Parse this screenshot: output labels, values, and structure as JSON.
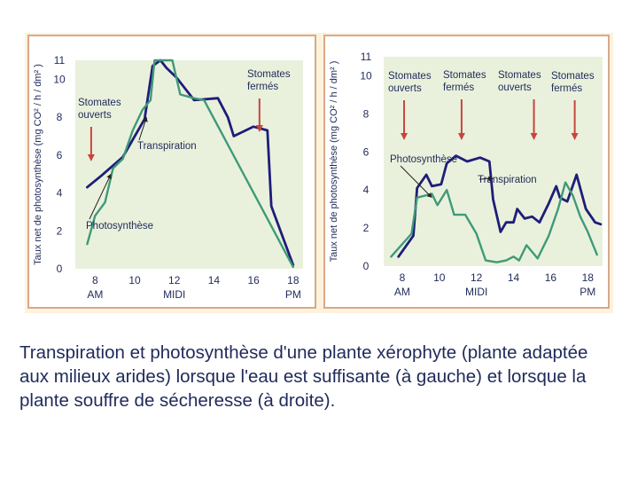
{
  "caption": "Transpiration et photosynthèse d'une plante xérophyte (plante adaptée aux milieux arides) lorsque l'eau est suffisante (à gauche) et lorsque la plante souffre de sécheresse (à droite).",
  "colors": {
    "transpiration": "#1f1d7a",
    "photosynthese": "#3f9a78",
    "plot_background": "#e9f1dc",
    "arrow": "#c8453e",
    "frame": "#d9a88a",
    "figure_background": "#fdf3dd",
    "text": "#1f2a5a"
  },
  "chart_data": [
    {
      "type": "line",
      "panel": "left",
      "ylabel": "Taux net de photosynthèse (mg CO² / h / dm² )",
      "xlim": [
        7,
        18.5
      ],
      "ylim": [
        0,
        11
      ],
      "yticks": [
        "0",
        "2",
        "4",
        "6",
        "8",
        "10",
        "11"
      ],
      "xticks": [
        {
          "value": 8,
          "label": "8",
          "sub": "AM"
        },
        {
          "value": 10,
          "label": "10",
          "sub": ""
        },
        {
          "value": 12,
          "label": "12",
          "sub": "MIDI"
        },
        {
          "value": 14,
          "label": "14",
          "sub": ""
        },
        {
          "value": 16,
          "label": "16",
          "sub": ""
        },
        {
          "value": 18,
          "label": "18",
          "sub": "PM"
        }
      ],
      "grid": false,
      "series": [
        {
          "name": "Transpiration",
          "color": "#1f1d7a",
          "points": [
            [
              7.6,
              4.3
            ],
            [
              8.3,
              4.9
            ],
            [
              9.4,
              5.9
            ],
            [
              10.5,
              7.9
            ],
            [
              10.9,
              10.7
            ],
            [
              11.3,
              11.0
            ],
            [
              11.6,
              10.6
            ],
            [
              12.1,
              10.1
            ],
            [
              13.0,
              8.9
            ],
            [
              14.2,
              9.0
            ],
            [
              14.7,
              8.0
            ],
            [
              15.0,
              7.0
            ],
            [
              16.0,
              7.5
            ],
            [
              16.7,
              7.3
            ],
            [
              16.9,
              3.3
            ],
            [
              18.0,
              0.2
            ]
          ]
        },
        {
          "name": "Photosynthèse",
          "color": "#3f9a78",
          "points": [
            [
              7.6,
              1.3
            ],
            [
              8.0,
              2.8
            ],
            [
              8.5,
              3.5
            ],
            [
              8.9,
              5.3
            ],
            [
              9.4,
              5.8
            ],
            [
              9.9,
              7.3
            ],
            [
              10.4,
              8.4
            ],
            [
              10.8,
              8.9
            ],
            [
              11.0,
              11.0
            ],
            [
              11.9,
              11.0
            ],
            [
              12.3,
              9.2
            ],
            [
              13.0,
              9.0
            ],
            [
              13.5,
              8.9
            ],
            [
              18.0,
              0.1
            ]
          ]
        }
      ],
      "annotations": [
        {
          "id": "stomates-ouverts",
          "lines": [
            "Stomates",
            "ouverts"
          ],
          "arrow_x": 7.8
        },
        {
          "id": "stomates-fermes",
          "lines": [
            "Stomates",
            "fermés"
          ],
          "arrow_x": 16.3
        },
        {
          "id": "transpiration-label",
          "lines": [
            "Transpiration"
          ],
          "target": [
            10.6,
            8.0
          ]
        },
        {
          "id": "photosynthese-label",
          "lines": [
            "Photosynthèse"
          ],
          "target": [
            8.8,
            5.0
          ]
        }
      ]
    },
    {
      "type": "line",
      "panel": "right",
      "ylabel": "Taux net de photosynthèse (mg CO² / h / dm² )",
      "xlim": [
        7,
        18.8
      ],
      "ylim": [
        0,
        11
      ],
      "yticks": [
        "0",
        "2",
        "4",
        "6",
        "8",
        "10",
        "11"
      ],
      "xticks": [
        {
          "value": 8,
          "label": "8",
          "sub": "AM"
        },
        {
          "value": 10,
          "label": "10",
          "sub": ""
        },
        {
          "value": 12,
          "label": "12",
          "sub": "MIDI"
        },
        {
          "value": 14,
          "label": "14",
          "sub": ""
        },
        {
          "value": 16,
          "label": "16",
          "sub": ""
        },
        {
          "value": 18,
          "label": "18",
          "sub": "PM"
        }
      ],
      "grid": false,
      "series": [
        {
          "name": "Transpiration",
          "color": "#1f1d7a",
          "points": [
            [
              7.8,
              0.5
            ],
            [
              8.6,
              1.6
            ],
            [
              8.8,
              4.1
            ],
            [
              9.3,
              4.8
            ],
            [
              9.6,
              4.2
            ],
            [
              10.1,
              4.3
            ],
            [
              10.4,
              5.4
            ],
            [
              10.9,
              5.8
            ],
            [
              11.5,
              5.5
            ],
            [
              12.2,
              5.7
            ],
            [
              12.7,
              5.5
            ],
            [
              12.9,
              3.5
            ],
            [
              13.3,
              1.8
            ],
            [
              13.6,
              2.3
            ],
            [
              14.0,
              2.3
            ],
            [
              14.2,
              3.0
            ],
            [
              14.6,
              2.5
            ],
            [
              15.0,
              2.6
            ],
            [
              15.4,
              2.3
            ],
            [
              15.9,
              3.3
            ],
            [
              16.3,
              4.2
            ],
            [
              16.5,
              3.6
            ],
            [
              16.9,
              3.4
            ],
            [
              17.4,
              4.8
            ],
            [
              17.9,
              3.0
            ],
            [
              18.4,
              2.3
            ],
            [
              18.7,
              2.2
            ]
          ]
        },
        {
          "name": "Photosynthèse",
          "color": "#3f9a78",
          "points": [
            [
              7.4,
              0.5
            ],
            [
              8.5,
              1.7
            ],
            [
              8.8,
              3.6
            ],
            [
              9.6,
              3.8
            ],
            [
              9.9,
              3.2
            ],
            [
              10.4,
              4.0
            ],
            [
              10.8,
              2.7
            ],
            [
              11.4,
              2.7
            ],
            [
              12.0,
              1.7
            ],
            [
              12.5,
              0.3
            ],
            [
              13.1,
              0.2
            ],
            [
              13.6,
              0.3
            ],
            [
              14.0,
              0.5
            ],
            [
              14.3,
              0.3
            ],
            [
              14.7,
              1.1
            ],
            [
              15.3,
              0.4
            ],
            [
              15.9,
              1.6
            ],
            [
              16.4,
              3.0
            ],
            [
              16.8,
              4.4
            ],
            [
              17.2,
              3.7
            ],
            [
              17.6,
              2.6
            ],
            [
              18.0,
              1.8
            ],
            [
              18.5,
              0.6
            ]
          ]
        }
      ],
      "annotations": [
        {
          "id": "stomates-ouverts-1",
          "lines": [
            "Stomates",
            "ouverts"
          ],
          "arrow_x": 8.1
        },
        {
          "id": "stomates-fermes-1",
          "lines": [
            "Stomates",
            "fermés"
          ],
          "arrow_x": 11.2
        },
        {
          "id": "stomates-ouverts-2",
          "lines": [
            "Stomates",
            "ouverts"
          ],
          "arrow_x": 15.1
        },
        {
          "id": "stomates-fermes-2",
          "lines": [
            "Stomates",
            "fermés"
          ],
          "arrow_x": 17.3
        },
        {
          "id": "photosynthese-label",
          "lines": [
            "Photosynthèse"
          ],
          "target": [
            9.6,
            3.6
          ]
        },
        {
          "id": "transpiration-label",
          "lines": [
            "Transpiration"
          ],
          "target": [
            12.9,
            4.6
          ]
        }
      ]
    }
  ]
}
